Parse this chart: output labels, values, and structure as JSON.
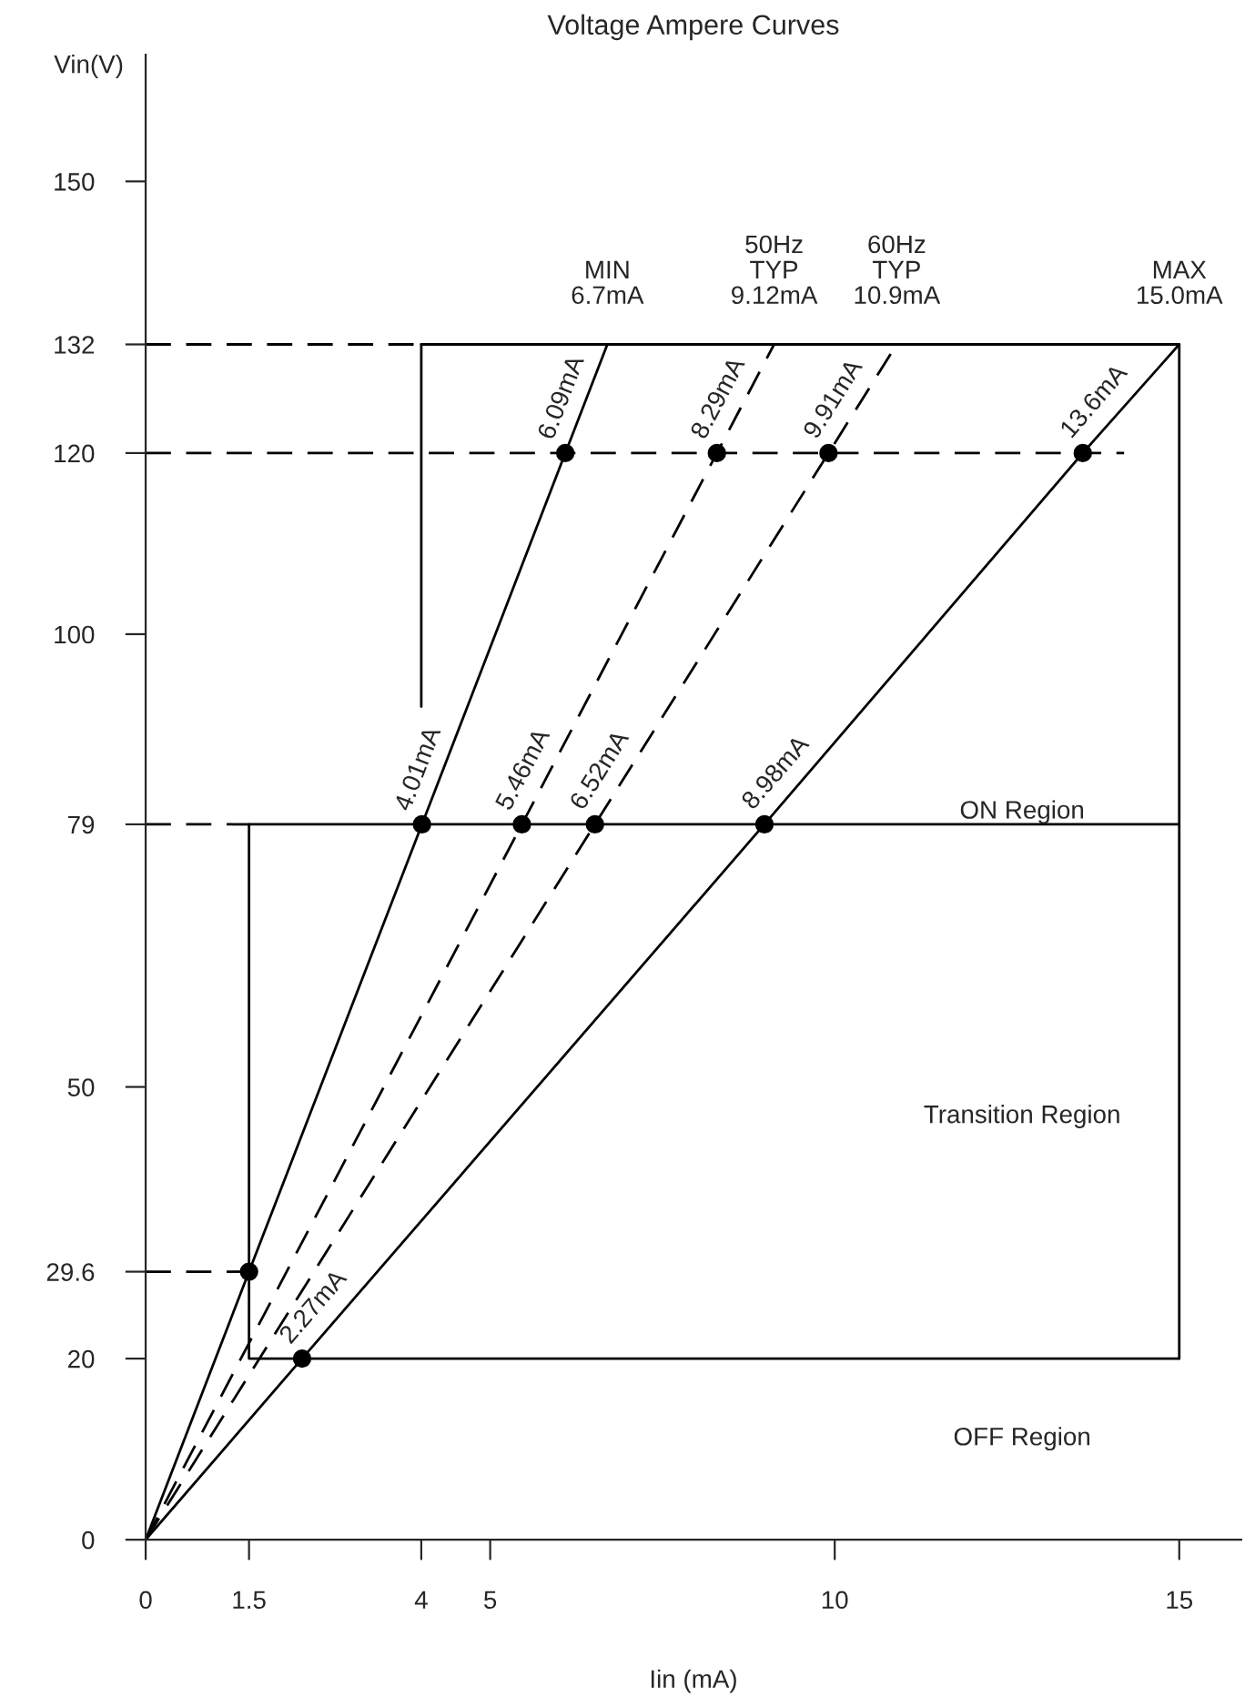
{
  "chart_data": {
    "type": "line",
    "title": "Voltage Ampere Curves",
    "xlabel": "Iin (mA)",
    "ylabel": "Vin(V)",
    "xlim": [
      0,
      15.9
    ],
    "ylim": [
      0,
      164
    ],
    "xticks": [
      0,
      1.5,
      4,
      5,
      10,
      15
    ],
    "yticks": [
      0,
      20,
      29.6,
      50,
      79,
      100,
      120,
      132,
      150
    ],
    "grid": false,
    "legend": false,
    "series": [
      {
        "color": "#000000",
        "line_style": "solid",
        "marker": "none",
        "x": [
          0,
          1.5,
          4.01,
          6.09,
          6.7
        ],
        "values": [
          0,
          29.6,
          79,
          120,
          132
        ]
      },
      {
        "color": "#000000",
        "line_style": "dashed",
        "marker": "none",
        "x": [
          0,
          5.46,
          8.29,
          9.12
        ],
        "values": [
          0,
          79,
          120,
          132
        ]
      },
      {
        "color": "#000000",
        "line_style": "dashed",
        "marker": "none",
        "x": [
          0,
          6.52,
          9.91,
          10.9
        ],
        "values": [
          0,
          79,
          120,
          132
        ]
      },
      {
        "color": "#000000",
        "line_style": "solid",
        "marker": "none",
        "x": [
          0,
          2.27,
          8.98,
          13.6,
          15
        ],
        "values": [
          0,
          20,
          79,
          120,
          132
        ]
      },
      {
        "color": "#000000",
        "line_style": "dashed",
        "marker": "none",
        "x": [
          0,
          4
        ],
        "values": [
          132,
          132
        ]
      },
      {
        "color": "#000000",
        "line_style": "solid",
        "marker": "none",
        "x": [
          4,
          15,
          15
        ],
        "values": [
          132,
          132,
          20
        ]
      },
      {
        "color": "#000000",
        "line_style": "solid",
        "marker": "none",
        "x": [
          4,
          4
        ],
        "values": [
          92,
          132
        ]
      },
      {
        "color": "#000000",
        "line_style": "dashed",
        "marker": "none",
        "x": [
          0,
          14.2
        ],
        "values": [
          120,
          120
        ]
      },
      {
        "color": "#000000",
        "line_style": "dashed",
        "marker": "none",
        "x": [
          0,
          1.5
        ],
        "values": [
          79,
          79
        ]
      },
      {
        "color": "#000000",
        "line_style": "solid",
        "marker": "none",
        "x": [
          15,
          1.5,
          1.5,
          15
        ],
        "values": [
          79,
          79,
          20,
          20
        ]
      },
      {
        "color": "#000000",
        "line_style": "dashed",
        "marker": "none",
        "x": [
          0,
          1.5
        ],
        "values": [
          29.6,
          29.6
        ]
      },
      {
        "type": "scatter",
        "color": "#000000",
        "marker": "circle",
        "x": [
          1.5,
          4.01,
          6.09,
          5.46,
          8.29,
          6.52,
          9.91,
          2.27,
          8.98,
          13.6
        ],
        "values": [
          29.6,
          79,
          120,
          79,
          120,
          79,
          120,
          20,
          79,
          120
        ]
      }
    ],
    "annotations": [
      {
        "text": "MIN\n6.7mA",
        "x": 6.7,
        "y": 132
      },
      {
        "text": "50Hz\nTYP\n9.12mA",
        "x": 9.12,
        "y": 132
      },
      {
        "text": "60Hz\nTYP\n10.9mA",
        "x": 10.9,
        "y": 132
      },
      {
        "text": "MAX\n15.0mA",
        "x": 15,
        "y": 132
      },
      {
        "text": "6.09mA",
        "x": 6.09,
        "y": 120
      },
      {
        "text": "8.29mA",
        "x": 8.29,
        "y": 120
      },
      {
        "text": "9.91mA",
        "x": 9.91,
        "y": 120
      },
      {
        "text": "13.6mA",
        "x": 13.6,
        "y": 120
      },
      {
        "text": "4.01mA",
        "x": 4.01,
        "y": 79
      },
      {
        "text": "5.46mA",
        "x": 5.46,
        "y": 79
      },
      {
        "text": "6.52mA",
        "x": 6.52,
        "y": 79
      },
      {
        "text": "8.98mA",
        "x": 8.98,
        "y": 79
      },
      {
        "text": "2.27mA",
        "x": 2.27,
        "y": 20
      },
      "ON Region",
      "Transition Region",
      "OFF Region"
    ]
  }
}
